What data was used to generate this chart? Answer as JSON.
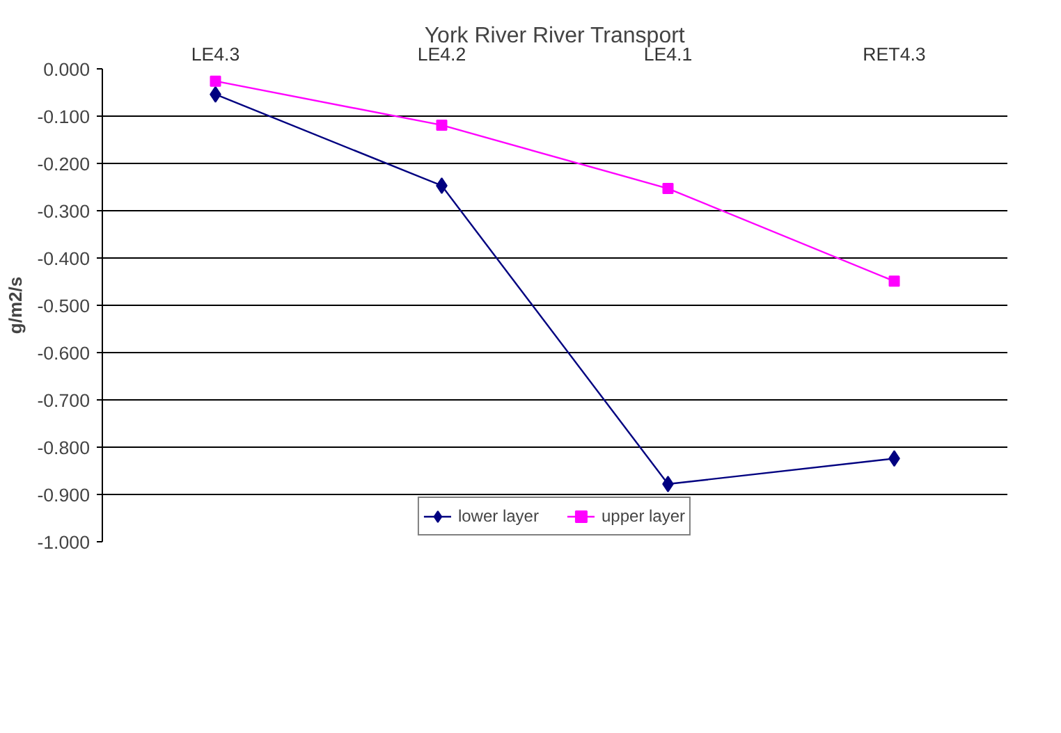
{
  "chart_data": {
    "type": "line",
    "title": "York River River Transport",
    "ylabel": "g/m2/s",
    "categories": [
      "LE4.3",
      "LE4.2",
      "LE4.1",
      "RET4.3"
    ],
    "series": [
      {
        "name": "lower layer",
        "color": "#000080",
        "marker": "diamond",
        "values": [
          -0.054,
          -0.247,
          -0.878,
          -0.824
        ]
      },
      {
        "name": "upper layer",
        "color": "#ff00ff",
        "marker": "square",
        "values": [
          -0.026,
          -0.119,
          -0.253,
          -0.449
        ]
      }
    ],
    "ylim": [
      -1.0,
      0.0
    ],
    "yticks": [
      {
        "value": 0,
        "label": "0.000"
      },
      {
        "value": -0.1,
        "label": "-0.100"
      },
      {
        "value": -0.2,
        "label": "-0.200"
      },
      {
        "value": -0.3,
        "label": "-0.300"
      },
      {
        "value": -0.4,
        "label": "-0.400"
      },
      {
        "value": -0.5,
        "label": "-0.500"
      },
      {
        "value": -0.6,
        "label": "-0.600"
      },
      {
        "value": -0.7,
        "label": "-0.700"
      },
      {
        "value": -0.8,
        "label": "-0.800"
      },
      {
        "value": -0.9,
        "label": "-0.900"
      },
      {
        "value": -1.0,
        "label": "-1.000"
      }
    ],
    "grid": "y",
    "legend": "bottom",
    "line_style": "solid"
  }
}
